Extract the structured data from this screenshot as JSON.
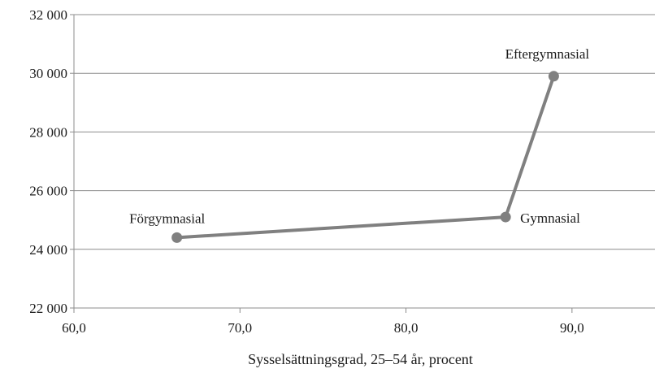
{
  "chart_data": {
    "type": "line",
    "title": "",
    "xlabel": "Sysselsättningsgrad, 25–54 år, procent",
    "ylabel": "",
    "xlim": [
      60,
      95
    ],
    "ylim": [
      22000,
      32000
    ],
    "x_ticks": [
      60,
      70,
      80,
      90
    ],
    "y_ticks": [
      22000,
      24000,
      26000,
      28000,
      30000,
      32000
    ],
    "x_tick_labels": [
      "60,0",
      "70,0",
      "80,0",
      "90,0"
    ],
    "y_tick_labels": [
      "22 000",
      "24 000",
      "26 000",
      "28 000",
      "30 000",
      "32 000"
    ],
    "grid": "horizontal",
    "series": [
      {
        "points": [
          {
            "label": "Förgymnasial",
            "x": 66.2,
            "y": 24400
          },
          {
            "label": "Gymnasial",
            "x": 86.0,
            "y": 25100
          },
          {
            "label": "Eftergymnasial",
            "x": 88.9,
            "y": 29900
          }
        ],
        "color": "#808080"
      }
    ],
    "colors": {
      "line": "#808080",
      "grid": "#8c8c8c",
      "axis": "#8c8c8c",
      "text": "#1a1a1a"
    }
  }
}
